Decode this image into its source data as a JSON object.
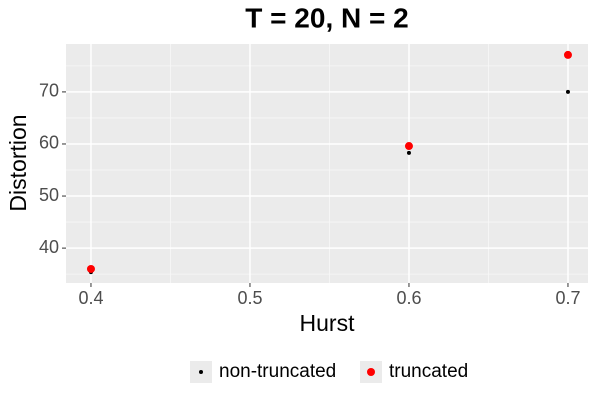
{
  "chart_data": {
    "type": "scatter",
    "title": "T = 20, N = 2",
    "x_label": "Hurst",
    "y_label": "Distortion",
    "series": [
      {
        "name": "non-truncated",
        "color": "#000000",
        "x": [
          0.4,
          0.6,
          0.7
        ],
        "values": [
          35.4,
          58.3,
          70.0
        ],
        "size": 2
      },
      {
        "name": "truncated",
        "color": "#ff0000",
        "x": [
          0.4,
          0.6,
          0.7
        ],
        "values": [
          36.0,
          59.6,
          77.1
        ],
        "size": 4
      }
    ],
    "xlim": [
      0.3843,
      0.7126
    ],
    "ylim": [
      33.3,
      79.2
    ],
    "xticks": [
      0.4,
      0.5,
      0.6,
      0.7
    ],
    "yticks": [
      40,
      50,
      60,
      70
    ],
    "xticks_minor": [
      0.45,
      0.55,
      0.65
    ],
    "yticks_minor": [
      35,
      45,
      55,
      65,
      75
    ],
    "grid": true,
    "legend": "bottom"
  }
}
